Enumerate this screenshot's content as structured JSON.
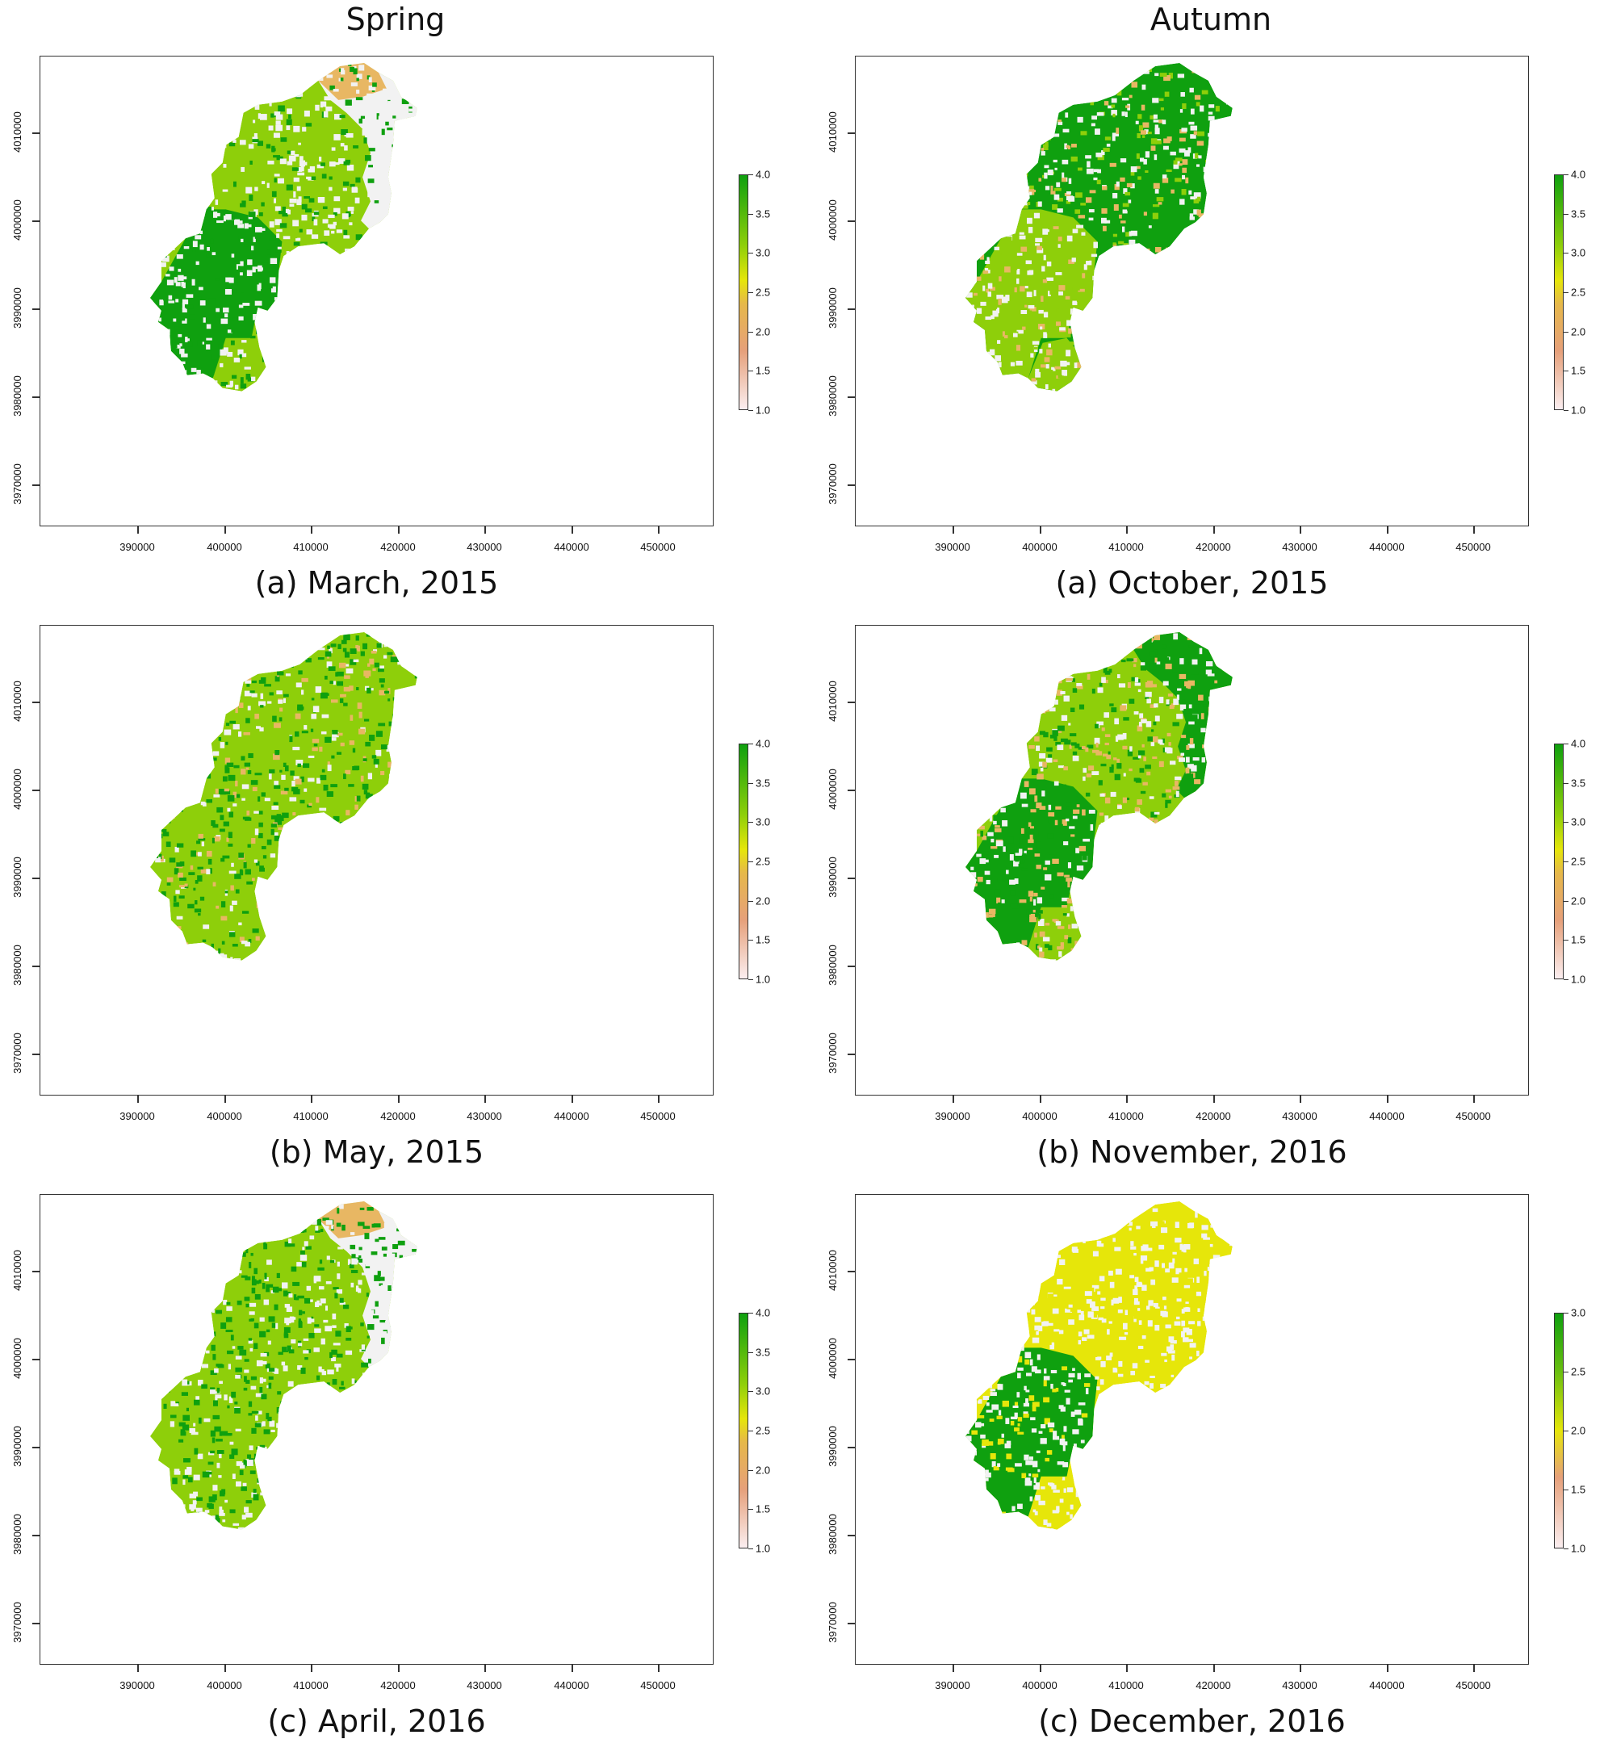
{
  "columns": [
    "Spring",
    "Autumn"
  ],
  "x_ticks": [
    "390000",
    "400000",
    "410000",
    "420000",
    "430000",
    "440000",
    "450000"
  ],
  "y_ticks": [
    "4010000",
    "4000000",
    "3990000",
    "3980000",
    "3970000"
  ],
  "colors": {
    "c1": "#f2f2f2",
    "c2": "#e8b763",
    "c3": "#8ecf0a",
    "c4": "#0fa00f",
    "cy": "#e6e60a"
  },
  "panels": [
    {
      "caption": "(a) March, 2015",
      "legend": [
        "4.0",
        "3.5",
        "3.0",
        "2.5",
        "2.0",
        "1.5",
        "1.0"
      ],
      "scheme": "march"
    },
    {
      "caption": "(a) October, 2015",
      "legend": [
        "4.0",
        "3.5",
        "3.0",
        "2.5",
        "2.0",
        "1.5",
        "1.0"
      ],
      "scheme": "october"
    },
    {
      "caption": "(b) May, 2015",
      "legend": [
        "4.0",
        "3.5",
        "3.0",
        "2.5",
        "2.0",
        "1.5",
        "1.0"
      ],
      "scheme": "may"
    },
    {
      "caption": "(b) November, 2016",
      "legend": [
        "4.0",
        "3.5",
        "3.0",
        "2.5",
        "2.0",
        "1.5",
        "1.0"
      ],
      "scheme": "november"
    },
    {
      "caption": "(c) April, 2016",
      "legend": [
        "4.0",
        "3.5",
        "3.0",
        "2.5",
        "2.0",
        "1.5",
        "1.0"
      ],
      "scheme": "april"
    },
    {
      "caption": "(c) December, 2016",
      "legend": [
        "3.0",
        "2.5",
        "2.0",
        "1.5",
        "1.0"
      ],
      "scheme": "december"
    }
  ]
}
